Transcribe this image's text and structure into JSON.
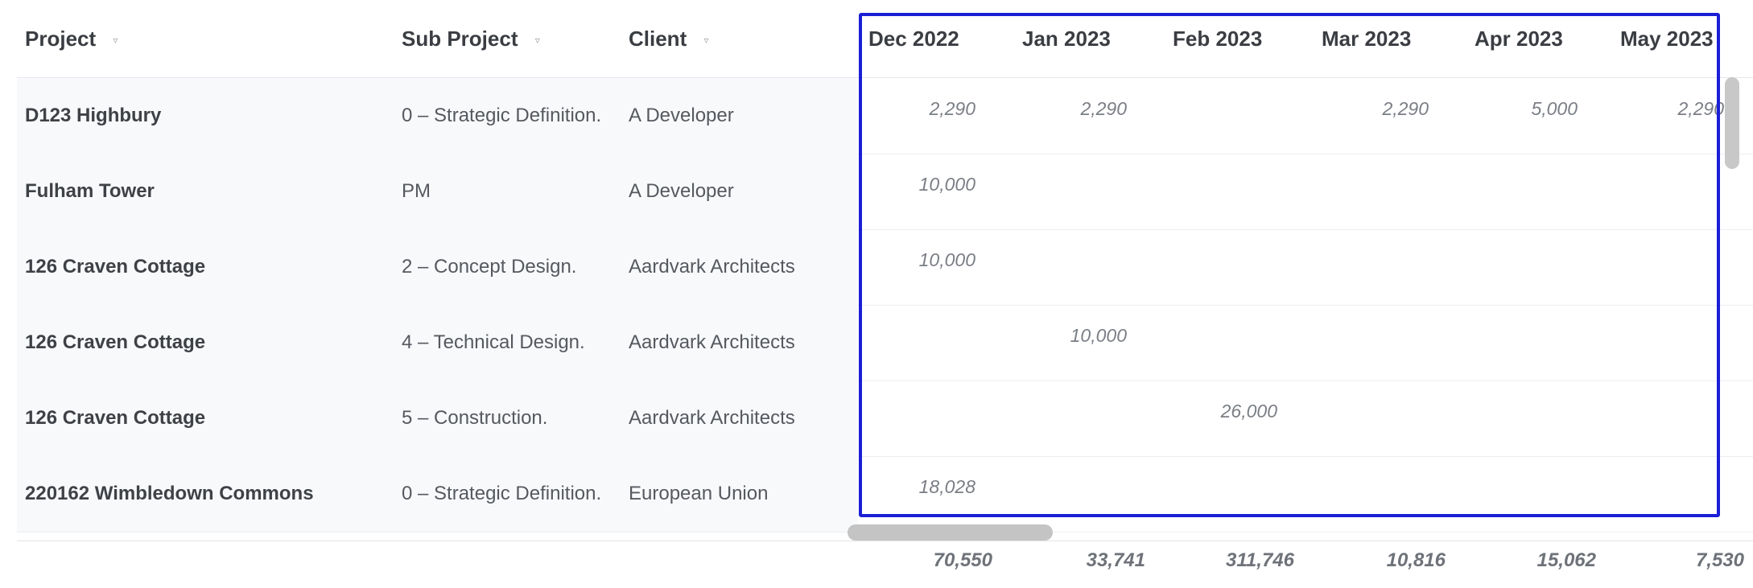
{
  "columns": {
    "project": "Project",
    "sub_project": "Sub Project",
    "client": "Client",
    "sort_icon": "▿"
  },
  "months": [
    "Dec 2022",
    "Jan 2023",
    "Feb 2023",
    "Mar 2023",
    "Apr 2023",
    "May 2023"
  ],
  "rows": [
    {
      "project": "D123 Highbury",
      "sub_project": "0 – Strategic Definition.",
      "client": "A Developer",
      "values": [
        "2,290",
        "2,290",
        "",
        "2,290",
        "5,000",
        "2,290"
      ]
    },
    {
      "project": "Fulham Tower",
      "sub_project": "PM",
      "client": "A Developer",
      "values": [
        "10,000",
        "",
        "",
        "",
        "",
        ""
      ]
    },
    {
      "project": "126 Craven Cottage",
      "sub_project": "2 – Concept Design.",
      "client": "Aardvark Architects",
      "values": [
        "10,000",
        "",
        "",
        "",
        "",
        ""
      ]
    },
    {
      "project": "126 Craven Cottage",
      "sub_project": "4 – Technical Design.",
      "client": "Aardvark Architects",
      "values": [
        "",
        "10,000",
        "",
        "",
        "",
        ""
      ]
    },
    {
      "project": "126 Craven Cottage",
      "sub_project": "5 – Construction.",
      "client": "Aardvark Architects",
      "values": [
        "",
        "",
        "26,000",
        "",
        "",
        ""
      ]
    },
    {
      "project": "220162 Wimbledown Commons",
      "sub_project": "0 – Strategic Definition.",
      "client": "European Union",
      "values": [
        "18,028",
        "",
        "",
        "",
        "",
        ""
      ]
    }
  ],
  "totals": [
    "70,550",
    "33,741",
    "311,746",
    "10,816",
    "15,062",
    "7,530"
  ],
  "colors": {
    "highlight": "#1a1fd6",
    "scrollbar": "#c4c4c4"
  }
}
